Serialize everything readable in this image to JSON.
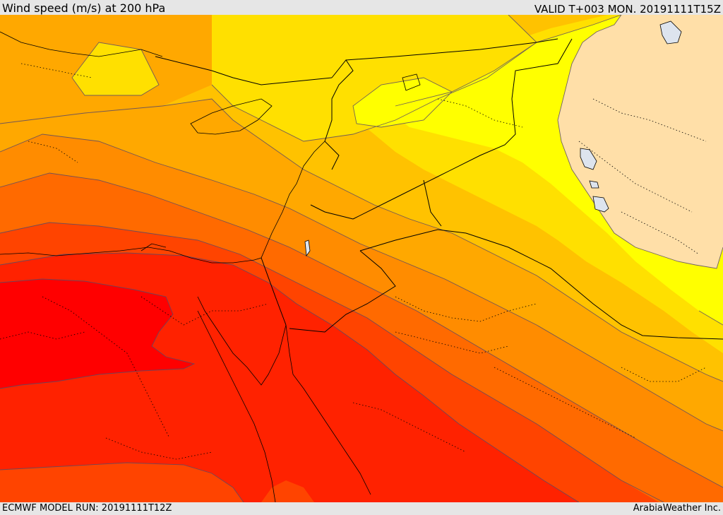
{
  "header": {
    "title": "Wind speed (m/s) at 200 hPa",
    "valid": "VALID T+003 MON. 20191111T15Z"
  },
  "footer": {
    "model_run": "ECMWF MODEL RUN: 20191111T12Z",
    "credit": "ArabiaWeather Inc."
  },
  "colors": {
    "band_low": "#ffdfa8",
    "band_1": "#ffff00",
    "band_2": "#ffe000",
    "band_3": "#ffc200",
    "band_4": "#ffa800",
    "band_5": "#ff8c00",
    "band_6": "#ff6a00",
    "band_7": "#ff4400",
    "band_8": "#ff2200",
    "band_max": "#ff0000",
    "lake": "#dde4ee"
  }
}
